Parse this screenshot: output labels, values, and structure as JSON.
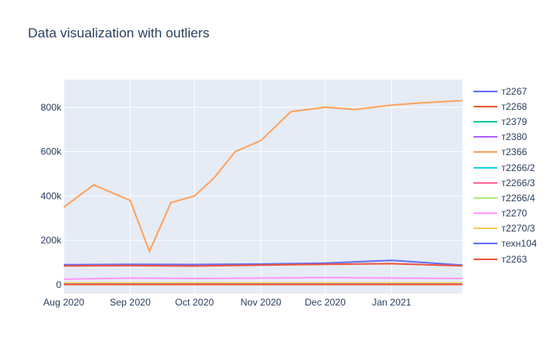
{
  "chart_data": {
    "type": "line",
    "title": "Data visualization with outliers",
    "xlabel": "",
    "ylabel": "",
    "x_range": [
      "2020-08-01",
      "2021-02-03"
    ],
    "ylim": [
      -40000,
      925000
    ],
    "grid": true,
    "legend_position": "right",
    "x_ticks": [
      {
        "date": "2020-08-01",
        "label": "Aug 2020"
      },
      {
        "date": "2020-09-01",
        "label": "Sep 2020"
      },
      {
        "date": "2020-10-01",
        "label": "Oct 2020"
      },
      {
        "date": "2020-11-01",
        "label": "Nov 2020"
      },
      {
        "date": "2020-12-01",
        "label": "Dec 2020"
      },
      {
        "date": "2021-01-01",
        "label": "Jan 2021"
      }
    ],
    "y_ticks": [
      {
        "value": 0,
        "label": "0"
      },
      {
        "value": 200000,
        "label": "200k"
      },
      {
        "value": 400000,
        "label": "400k"
      },
      {
        "value": 600000,
        "label": "600k"
      },
      {
        "value": 800000,
        "label": "800k"
      }
    ],
    "series": [
      {
        "name": "т2267",
        "color": "#636efa",
        "x": [
          "2020-08-01",
          "2020-09-01",
          "2020-10-01",
          "2020-11-01",
          "2020-12-01",
          "2021-01-01",
          "2021-02-03"
        ],
        "y": [
          90000,
          92000,
          91000,
          93000,
          97000,
          110000,
          88000
        ]
      },
      {
        "name": "т2268",
        "color": "#EF553B",
        "x": [
          "2020-08-01",
          "2020-09-01",
          "2020-10-01",
          "2020-11-01",
          "2020-12-01",
          "2021-01-01",
          "2021-02-03"
        ],
        "y": [
          85000,
          86000,
          84000,
          88000,
          92000,
          95000,
          85000
        ]
      },
      {
        "name": "т2379",
        "color": "#00cc96",
        "x": [
          "2020-08-01",
          "2021-02-03"
        ],
        "y": [
          3000,
          3000
        ]
      },
      {
        "name": "т2380",
        "color": "#ab63fa",
        "x": [
          "2020-08-01",
          "2021-02-03"
        ],
        "y": [
          4000,
          4000
        ]
      },
      {
        "name": "т2366",
        "color": "#FFA15A",
        "x": [
          "2020-08-01",
          "2020-08-15",
          "2020-09-01",
          "2020-09-10",
          "2020-09-20",
          "2020-10-01",
          "2020-10-10",
          "2020-10-20",
          "2020-11-01",
          "2020-11-15",
          "2020-12-01",
          "2020-12-15",
          "2021-01-01",
          "2021-01-15",
          "2021-02-03"
        ],
        "y": [
          350000,
          450000,
          380000,
          150000,
          370000,
          400000,
          480000,
          600000,
          650000,
          780000,
          800000,
          790000,
          810000,
          820000,
          830000
        ]
      },
      {
        "name": "т2266/2",
        "color": "#19d3f3",
        "x": [
          "2020-08-01",
          "2021-02-03"
        ],
        "y": [
          5000,
          5000
        ]
      },
      {
        "name": "т2266/3",
        "color": "#FF6692",
        "x": [
          "2020-08-01",
          "2021-02-03"
        ],
        "y": [
          6000,
          6000
        ]
      },
      {
        "name": "т2266/4",
        "color": "#B6E880",
        "x": [
          "2020-08-01",
          "2021-02-03"
        ],
        "y": [
          7000,
          7000
        ]
      },
      {
        "name": "т2270",
        "color": "#FF97FF",
        "x": [
          "2020-08-01",
          "2020-09-01",
          "2020-10-01",
          "2020-11-01",
          "2020-12-01",
          "2021-01-01",
          "2021-02-03"
        ],
        "y": [
          25000,
          30000,
          28000,
          30000,
          32000,
          30000,
          28000
        ]
      },
      {
        "name": "т2270/3",
        "color": "#FECB52",
        "x": [
          "2020-08-01",
          "2021-02-03"
        ],
        "y": [
          8000,
          8000
        ]
      },
      {
        "name": "техн104",
        "color": "#636efa",
        "x": [
          "2020-08-01",
          "2021-02-03"
        ],
        "y": [
          2000,
          2000
        ]
      },
      {
        "name": "т2263",
        "color": "#EF553B",
        "x": [
          "2020-08-01",
          "2021-02-03"
        ],
        "y": [
          1000,
          1000
        ]
      }
    ]
  }
}
